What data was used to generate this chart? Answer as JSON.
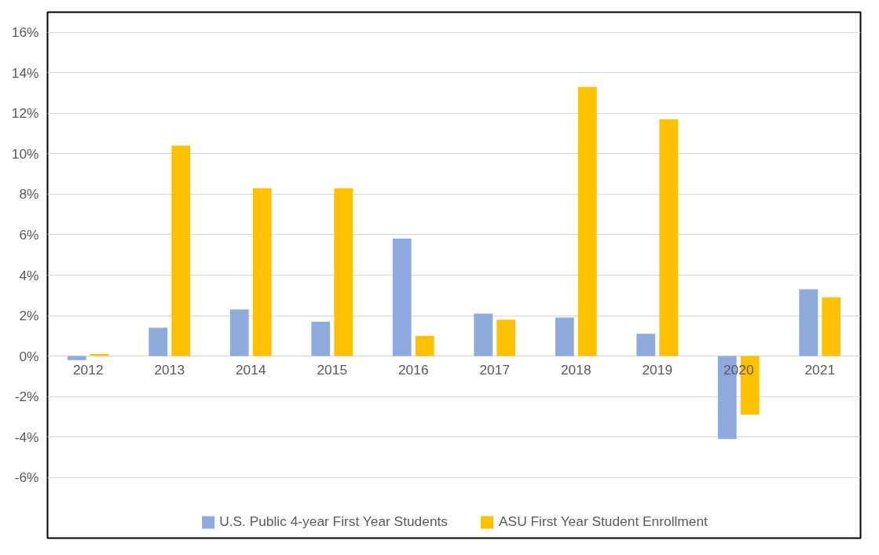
{
  "chart_data": {
    "type": "bar",
    "categories": [
      "2012",
      "2013",
      "2014",
      "2015",
      "2016",
      "2017",
      "2018",
      "2019",
      "2020",
      "2021"
    ],
    "series": [
      {
        "name": "U.S. Public 4-year First Year Students",
        "color": "#8faadc",
        "values": [
          -0.2,
          1.4,
          2.3,
          1.7,
          5.8,
          2.1,
          1.9,
          1.1,
          -4.1,
          3.3
        ]
      },
      {
        "name": "ASU First Year Student Enrollment",
        "color": "#ffc000",
        "values": [
          0.1,
          10.4,
          8.3,
          8.3,
          1.0,
          1.8,
          13.3,
          11.7,
          -2.9,
          2.9
        ]
      }
    ],
    "ylim": [
      -9,
      17
    ],
    "yticks": [
      {
        "value": -6,
        "label": "-6%"
      },
      {
        "value": -4,
        "label": "-4%"
      },
      {
        "value": -2,
        "label": "-2%"
      },
      {
        "value": 0,
        "label": "0%"
      },
      {
        "value": 2,
        "label": "2%"
      },
      {
        "value": 4,
        "label": "4%"
      },
      {
        "value": 6,
        "label": "6%"
      },
      {
        "value": 8,
        "label": "8%"
      },
      {
        "value": 10,
        "label": "10%"
      },
      {
        "value": 12,
        "label": "12%"
      },
      {
        "value": 14,
        "label": "14%"
      },
      {
        "value": 16,
        "label": "16%"
      }
    ],
    "grid": "y",
    "legend": "bottom"
  }
}
